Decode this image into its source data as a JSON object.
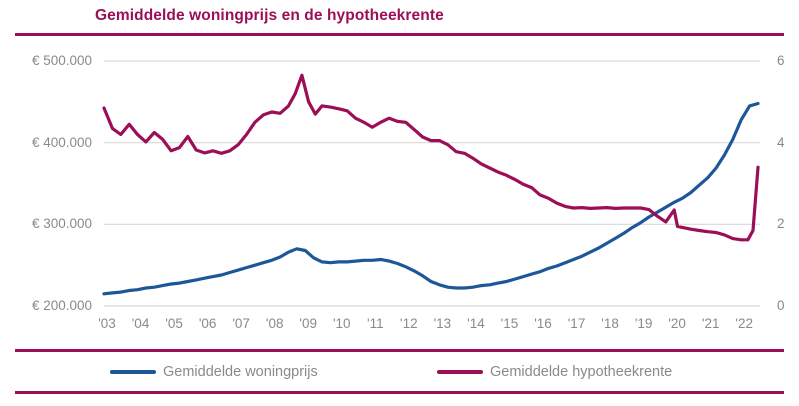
{
  "title": "Gemiddelde woningprijs en de hypotheekrente",
  "colors": {
    "accent": "#9c0e56",
    "price_line": "#1e5799",
    "rate_line": "#9c0e56",
    "axis_text": "#8a8a8a",
    "gridline": "#d9d9d9"
  },
  "legend": [
    {
      "label": "Gemiddelde woningprijs",
      "color": "#1e5799"
    },
    {
      "label": "Gemiddelde hypotheekrente",
      "color": "#9c0e56"
    }
  ],
  "chart_data": {
    "type": "line",
    "title": "Gemiddelde woningprijs en de hypotheekrente",
    "grid": true,
    "legend_position": "bottom",
    "x_axis": {
      "tick_labels": [
        "'03",
        "'04",
        "'05",
        "'06",
        "'07",
        "'08",
        "'09",
        "'10",
        "'11",
        "'12",
        "'13",
        "'14",
        "'15",
        "'16",
        "'17",
        "'18",
        "'19",
        "'20",
        "'21",
        "'22"
      ],
      "tick_values": [
        2003,
        2004,
        2005,
        2006,
        2007,
        2008,
        2009,
        2010,
        2011,
        2012,
        2013,
        2014,
        2015,
        2016,
        2017,
        2018,
        2019,
        2020,
        2021,
        2022
      ],
      "range": [
        2003,
        2022.5
      ]
    },
    "left_axis": {
      "tick_labels": [
        "€ 500.000",
        "€ 400.000",
        "€ 300.000",
        "€ 200.000"
      ],
      "tick_values": [
        500000,
        400000,
        300000,
        200000
      ],
      "range": [
        200000,
        500000
      ]
    },
    "right_axis": {
      "tick_labels": [
        "6",
        "4",
        "2",
        "0"
      ],
      "tick_values": [
        6,
        4,
        2,
        0
      ],
      "range": [
        0,
        6
      ]
    },
    "series": [
      {
        "name": "Gemiddelde woningprijs",
        "axis": "left",
        "color": "#1e5799",
        "points": [
          [
            2003.0,
            215000
          ],
          [
            2003.25,
            216000
          ],
          [
            2003.5,
            217000
          ],
          [
            2003.75,
            219000
          ],
          [
            2004.0,
            220000
          ],
          [
            2004.25,
            222000
          ],
          [
            2004.5,
            223000
          ],
          [
            2004.75,
            225000
          ],
          [
            2005.0,
            227000
          ],
          [
            2005.25,
            228000
          ],
          [
            2005.5,
            230000
          ],
          [
            2005.75,
            232000
          ],
          [
            2006.0,
            234000
          ],
          [
            2006.25,
            236000
          ],
          [
            2006.5,
            238000
          ],
          [
            2006.75,
            241000
          ],
          [
            2007.0,
            244000
          ],
          [
            2007.25,
            247000
          ],
          [
            2007.5,
            250000
          ],
          [
            2007.75,
            253000
          ],
          [
            2008.0,
            256000
          ],
          [
            2008.25,
            260000
          ],
          [
            2008.5,
            266000
          ],
          [
            2008.75,
            270000
          ],
          [
            2009.0,
            268000
          ],
          [
            2009.25,
            259000
          ],
          [
            2009.5,
            254000
          ],
          [
            2009.75,
            253000
          ],
          [
            2010.0,
            254000
          ],
          [
            2010.25,
            254000
          ],
          [
            2010.5,
            255000
          ],
          [
            2010.75,
            256000
          ],
          [
            2011.0,
            256000
          ],
          [
            2011.25,
            257000
          ],
          [
            2011.5,
            255000
          ],
          [
            2011.75,
            252000
          ],
          [
            2012.0,
            248000
          ],
          [
            2012.25,
            243000
          ],
          [
            2012.5,
            237000
          ],
          [
            2012.75,
            230000
          ],
          [
            2013.0,
            226000
          ],
          [
            2013.25,
            223000
          ],
          [
            2013.5,
            222000
          ],
          [
            2013.75,
            222000
          ],
          [
            2014.0,
            223000
          ],
          [
            2014.25,
            225000
          ],
          [
            2014.5,
            226000
          ],
          [
            2014.75,
            228000
          ],
          [
            2015.0,
            230000
          ],
          [
            2015.25,
            233000
          ],
          [
            2015.5,
            236000
          ],
          [
            2015.75,
            239000
          ],
          [
            2016.0,
            242000
          ],
          [
            2016.25,
            246000
          ],
          [
            2016.5,
            249000
          ],
          [
            2016.75,
            253000
          ],
          [
            2017.0,
            257000
          ],
          [
            2017.25,
            261000
          ],
          [
            2017.5,
            266000
          ],
          [
            2017.75,
            271000
          ],
          [
            2018.0,
            277000
          ],
          [
            2018.25,
            283000
          ],
          [
            2018.5,
            289000
          ],
          [
            2018.75,
            296000
          ],
          [
            2019.0,
            302000
          ],
          [
            2019.25,
            309000
          ],
          [
            2019.5,
            315000
          ],
          [
            2019.75,
            321000
          ],
          [
            2020.0,
            327000
          ],
          [
            2020.25,
            332000
          ],
          [
            2020.5,
            339000
          ],
          [
            2020.75,
            348000
          ],
          [
            2021.0,
            357000
          ],
          [
            2021.25,
            369000
          ],
          [
            2021.5,
            385000
          ],
          [
            2021.75,
            404000
          ],
          [
            2022.0,
            428000
          ],
          [
            2022.25,
            445000
          ],
          [
            2022.5,
            448000
          ]
        ]
      },
      {
        "name": "Gemiddelde hypotheekrente",
        "axis": "right",
        "color": "#9c0e56",
        "points": [
          [
            2003.0,
            4.85
          ],
          [
            2003.25,
            4.35
          ],
          [
            2003.5,
            4.2
          ],
          [
            2003.75,
            4.45
          ],
          [
            2004.0,
            4.2
          ],
          [
            2004.25,
            4.02
          ],
          [
            2004.5,
            4.25
          ],
          [
            2004.75,
            4.08
          ],
          [
            2005.0,
            3.8
          ],
          [
            2005.25,
            3.88
          ],
          [
            2005.5,
            4.15
          ],
          [
            2005.75,
            3.82
          ],
          [
            2006.0,
            3.75
          ],
          [
            2006.25,
            3.8
          ],
          [
            2006.5,
            3.74
          ],
          [
            2006.75,
            3.8
          ],
          [
            2007.0,
            3.95
          ],
          [
            2007.25,
            4.2
          ],
          [
            2007.5,
            4.5
          ],
          [
            2007.75,
            4.68
          ],
          [
            2008.0,
            4.75
          ],
          [
            2008.25,
            4.72
          ],
          [
            2008.5,
            4.9
          ],
          [
            2008.7,
            5.2
          ],
          [
            2008.9,
            5.65
          ],
          [
            2009.1,
            5.0
          ],
          [
            2009.3,
            4.7
          ],
          [
            2009.5,
            4.9
          ],
          [
            2009.75,
            4.87
          ],
          [
            2010.0,
            4.83
          ],
          [
            2010.25,
            4.78
          ],
          [
            2010.5,
            4.6
          ],
          [
            2010.75,
            4.5
          ],
          [
            2011.0,
            4.38
          ],
          [
            2011.25,
            4.5
          ],
          [
            2011.5,
            4.6
          ],
          [
            2011.75,
            4.52
          ],
          [
            2012.0,
            4.5
          ],
          [
            2012.25,
            4.32
          ],
          [
            2012.5,
            4.14
          ],
          [
            2012.75,
            4.05
          ],
          [
            2013.0,
            4.05
          ],
          [
            2013.25,
            3.95
          ],
          [
            2013.5,
            3.78
          ],
          [
            2013.75,
            3.74
          ],
          [
            2014.0,
            3.62
          ],
          [
            2014.25,
            3.48
          ],
          [
            2014.5,
            3.38
          ],
          [
            2014.75,
            3.28
          ],
          [
            2015.0,
            3.2
          ],
          [
            2015.25,
            3.1
          ],
          [
            2015.5,
            2.98
          ],
          [
            2015.75,
            2.9
          ],
          [
            2016.0,
            2.72
          ],
          [
            2016.25,
            2.64
          ],
          [
            2016.5,
            2.52
          ],
          [
            2016.75,
            2.44
          ],
          [
            2017.0,
            2.4
          ],
          [
            2017.25,
            2.41
          ],
          [
            2017.5,
            2.39
          ],
          [
            2017.75,
            2.4
          ],
          [
            2018.0,
            2.41
          ],
          [
            2018.25,
            2.39
          ],
          [
            2018.5,
            2.4
          ],
          [
            2018.75,
            2.4
          ],
          [
            2019.0,
            2.4
          ],
          [
            2019.25,
            2.36
          ],
          [
            2019.5,
            2.2
          ],
          [
            2019.75,
            2.06
          ],
          [
            2020.0,
            2.35
          ],
          [
            2020.1,
            1.95
          ],
          [
            2020.5,
            1.88
          ],
          [
            2020.75,
            1.85
          ],
          [
            2021.0,
            1.82
          ],
          [
            2021.25,
            1.8
          ],
          [
            2021.5,
            1.74
          ],
          [
            2021.75,
            1.65
          ],
          [
            2022.0,
            1.62
          ],
          [
            2022.2,
            1.62
          ],
          [
            2022.35,
            1.85
          ],
          [
            2022.5,
            3.4
          ]
        ]
      }
    ]
  }
}
